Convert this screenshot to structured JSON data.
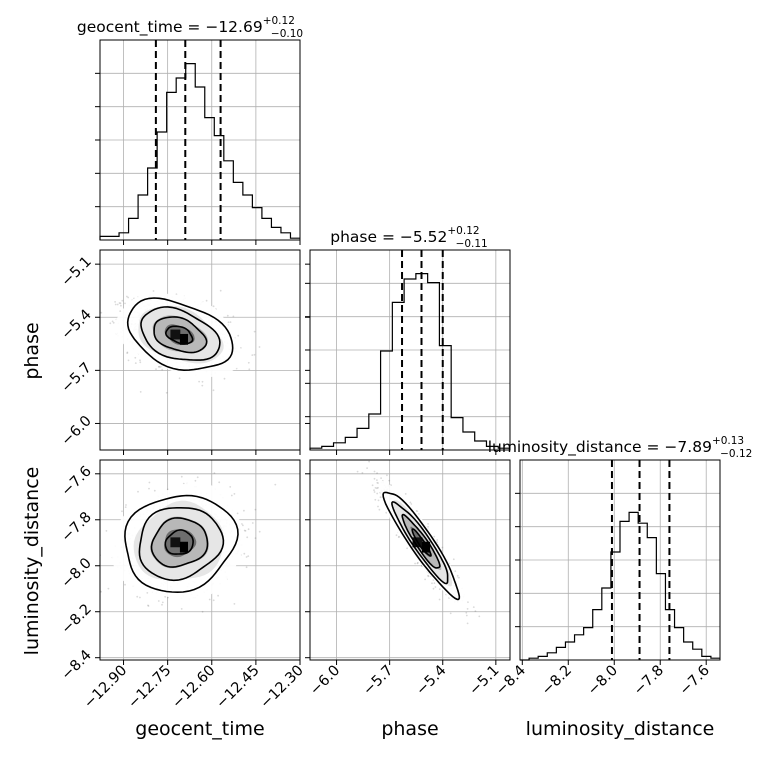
{
  "chart_data": {
    "type": "scatter",
    "grid": true,
    "parameters": [
      {
        "name": "geocent_time",
        "label": "geocent_time",
        "median": -12.69,
        "plus": "+0.12",
        "minus": "−0.10",
        "title_prefix": "geocent_time = −12.69",
        "quantiles": [
          -12.79,
          -12.69,
          -12.57
        ],
        "range": [
          -12.98,
          -12.3
        ],
        "ticks": [
          -12.9,
          -12.75,
          -12.6,
          -12.45,
          -12.3
        ],
        "tick_labels": [
          "−12.90",
          "−12.75",
          "−12.60",
          "−12.45",
          "−12.30"
        ]
      },
      {
        "name": "phase",
        "label": "phase",
        "median": -5.52,
        "plus": "+0.12",
        "minus": "−0.11",
        "title_prefix": "phase = −5.52",
        "quantiles": [
          -5.63,
          -5.52,
          -5.4
        ],
        "range": [
          -6.15,
          -5.02
        ],
        "ticks": [
          -6.0,
          -5.7,
          -5.4,
          -5.1
        ],
        "tick_labels": [
          "−6.0",
          "−5.7",
          "−5.4",
          "−5.1"
        ]
      },
      {
        "name": "luminosity_distance",
        "label": "luminosity_distance",
        "median": -7.89,
        "plus": "+0.13",
        "minus": "−0.12",
        "title_prefix": "luminosity_distance = −7.89",
        "quantiles": [
          -8.01,
          -7.89,
          -7.76
        ],
        "range": [
          -8.41,
          -7.54
        ],
        "ticks": [
          -8.4,
          -8.2,
          -8.0,
          -7.8,
          -7.6
        ],
        "tick_labels": [
          "−8.4",
          "−8.2",
          "−8.0",
          "−7.8",
          "−7.6"
        ]
      }
    ],
    "histograms": {
      "geocent_time": [
        0.02,
        0.02,
        0.04,
        0.12,
        0.25,
        0.4,
        0.6,
        0.82,
        0.9,
        0.98,
        0.85,
        0.68,
        0.58,
        0.44,
        0.32,
        0.25,
        0.18,
        0.12,
        0.07,
        0.04,
        0.01
      ],
      "phase": [
        0.01,
        0.02,
        0.04,
        0.07,
        0.12,
        0.2,
        0.55,
        0.82,
        0.95,
        0.98,
        0.93,
        0.58,
        0.18,
        0.1,
        0.05,
        0.02,
        0.01
      ],
      "luminosity_distance": [
        0.0,
        0.01,
        0.02,
        0.04,
        0.07,
        0.1,
        0.14,
        0.18,
        0.28,
        0.4,
        0.6,
        0.77,
        0.82,
        0.76,
        0.68,
        0.48,
        0.28,
        0.18,
        0.1,
        0.06,
        0.02,
        0.01
      ]
    },
    "posterior_2d": [
      {
        "x": "geocent_time",
        "y": "phase",
        "center": [
          -12.71,
          -5.5
        ],
        "sigma": [
          0.085,
          0.095
        ],
        "corr": -0.35
      },
      {
        "x": "geocent_time",
        "y": "luminosity_distance",
        "center": [
          -12.71,
          -7.9
        ],
        "sigma": [
          0.09,
          0.1
        ],
        "corr": 0.1
      },
      {
        "x": "phase",
        "y": "luminosity_distance",
        "center": [
          -5.52,
          -7.9
        ],
        "sigma": [
          0.1,
          0.11
        ],
        "corr": -0.93
      }
    ]
  }
}
